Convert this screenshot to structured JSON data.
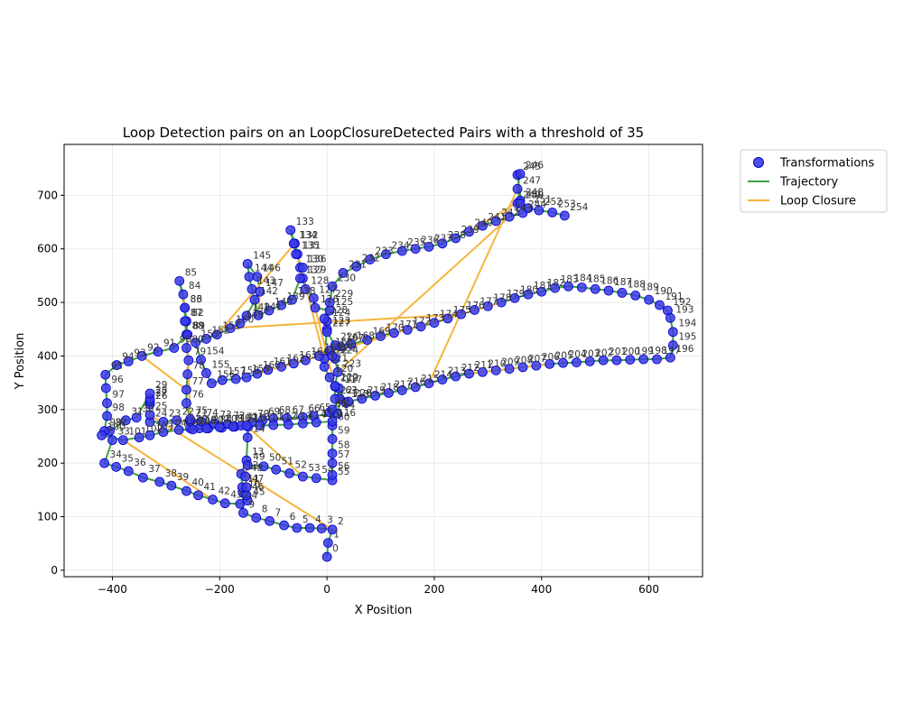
{
  "chart_data": {
    "type": "scatter",
    "title": "Loop Detection pairs on an LoopClosureDetected Pairs with a threshold of 35",
    "xlabel": "X Position",
    "ylabel": "Y Position",
    "xlim": [
      -490,
      700
    ],
    "ylim": [
      -12,
      795
    ],
    "xticks": [
      -400,
      -200,
      0,
      200,
      400,
      600
    ],
    "yticks": [
      0,
      100,
      200,
      300,
      400,
      500,
      600,
      700
    ],
    "xtick_labels": [
      "−400",
      "−200",
      "0",
      "200",
      "400",
      "600"
    ],
    "ytick_labels": [
      "0",
      "100",
      "200",
      "300",
      "400",
      "500",
      "600",
      "700"
    ],
    "grid": true,
    "legend_position": "outside-top-right",
    "colors": {
      "points_fill": "#3a3ae6",
      "points_edge": "#0000cc",
      "trajectory": "#3f9f3f",
      "loop": "#f5b53c",
      "label": "#333333"
    },
    "legend": [
      {
        "label": "Transformations",
        "kind": "marker"
      },
      {
        "label": "Trajectory",
        "kind": "trajectory"
      },
      {
        "label": "Loop Closure",
        "kind": "loop"
      }
    ],
    "points": [
      [
        0,
        25
      ],
      [
        2,
        51
      ],
      [
        10,
        76
      ],
      [
        -10,
        78
      ],
      [
        -32,
        79
      ],
      [
        -56,
        79
      ],
      [
        -80,
        84
      ],
      [
        -107,
        92
      ],
      [
        -132,
        98
      ],
      [
        -156,
        107
      ],
      [
        -157,
        145
      ],
      [
        -158,
        155
      ],
      [
        -160,
        180
      ],
      [
        -150,
        205
      ],
      [
        -148,
        248
      ],
      [
        -147,
        268
      ],
      [
        -172,
        268
      ],
      [
        -196,
        266
      ],
      [
        -221,
        265
      ],
      [
        -238,
        265
      ],
      [
        -255,
        265
      ],
      [
        -255,
        278
      ],
      [
        -280,
        280
      ],
      [
        -305,
        277
      ],
      [
        -330,
        277
      ],
      [
        -330,
        290
      ],
      [
        -330,
        310
      ],
      [
        -330,
        315
      ],
      [
        -330,
        320
      ],
      [
        -330,
        330
      ],
      [
        -355,
        285
      ],
      [
        -375,
        280
      ],
      [
        -405,
        260
      ],
      [
        -400,
        243
      ],
      [
        -415,
        200
      ],
      [
        -393,
        193
      ],
      [
        -370,
        185
      ],
      [
        -343,
        173
      ],
      [
        -312,
        165
      ],
      [
        -290,
        158
      ],
      [
        -262,
        148
      ],
      [
        -240,
        140
      ],
      [
        -213,
        132
      ],
      [
        -190,
        125
      ],
      [
        -162,
        124
      ],
      [
        -148,
        130
      ],
      [
        -150,
        140
      ],
      [
        -150,
        155
      ],
      [
        -152,
        175
      ],
      [
        -148,
        196
      ],
      [
        -118,
        194
      ],
      [
        -95,
        188
      ],
      [
        -70,
        181
      ],
      [
        -45,
        175
      ],
      [
        -20,
        172
      ],
      [
        10,
        168
      ],
      [
        10,
        178
      ],
      [
        10,
        200
      ],
      [
        10,
        218
      ],
      [
        10,
        245
      ],
      [
        10,
        270
      ],
      [
        5,
        295
      ],
      [
        10,
        300
      ],
      [
        24,
        320
      ],
      [
        20,
        292
      ],
      [
        -25,
        288
      ],
      [
        -45,
        286
      ],
      [
        -75,
        284
      ],
      [
        -100,
        283
      ],
      [
        -120,
        280
      ],
      [
        -140,
        276
      ],
      [
        -160,
        270
      ],
      [
        -185,
        273
      ],
      [
        -210,
        274
      ],
      [
        -235,
        278
      ],
      [
        -255,
        282
      ],
      [
        -262,
        312
      ],
      [
        -262,
        337
      ],
      [
        -260,
        366
      ],
      [
        -258,
        392
      ],
      [
        -262,
        415
      ],
      [
        -260,
        440
      ],
      [
        -262,
        465
      ],
      [
        -265,
        490
      ],
      [
        -268,
        515
      ],
      [
        -275,
        540
      ],
      [
        -265,
        490
      ],
      [
        -265,
        465
      ],
      [
        -262,
        440
      ],
      [
        -260,
        440
      ],
      [
        -285,
        415
      ],
      [
        -315,
        408
      ],
      [
        -345,
        400
      ],
      [
        -370,
        390
      ],
      [
        -392,
        383
      ],
      [
        -413,
        365
      ],
      [
        -412,
        340
      ],
      [
        -410,
        312
      ],
      [
        -410,
        288
      ],
      [
        -415,
        260
      ],
      [
        -420,
        252
      ],
      [
        -380,
        243
      ],
      [
        -350,
        248
      ],
      [
        -330,
        252
      ],
      [
        -305,
        258
      ],
      [
        -276,
        262
      ],
      [
        -250,
        263
      ],
      [
        -225,
        265
      ],
      [
        -200,
        267
      ],
      [
        -175,
        268
      ],
      [
        -150,
        270
      ],
      [
        -125,
        270
      ],
      [
        -100,
        271
      ],
      [
        -72,
        272
      ],
      [
        -45,
        274
      ],
      [
        -20,
        276
      ],
      [
        10,
        278
      ],
      [
        22,
        340
      ],
      [
        35,
        313
      ],
      [
        15,
        343
      ],
      [
        5,
        360
      ],
      [
        -5,
        380
      ],
      [
        -5,
        395
      ],
      [
        0,
        450
      ],
      [
        0,
        465
      ],
      [
        5,
        485
      ],
      [
        -22,
        490
      ],
      [
        -25,
        508
      ],
      [
        -40,
        525
      ],
      [
        -45,
        545
      ],
      [
        -50,
        565
      ],
      [
        -55,
        590
      ],
      [
        -60,
        610
      ],
      [
        -68,
        635
      ],
      [
        -62,
        610
      ],
      [
        -58,
        590
      ],
      [
        -45,
        565
      ],
      [
        -50,
        545
      ],
      [
        -65,
        505
      ],
      [
        -85,
        495
      ],
      [
        -108,
        485
      ],
      [
        -128,
        476
      ],
      [
        -135,
        505
      ],
      [
        -140,
        525
      ],
      [
        -145,
        548
      ],
      [
        -148,
        572
      ],
      [
        -130,
        548
      ],
      [
        -125,
        520
      ],
      [
        -150,
        475
      ],
      [
        -162,
        461
      ],
      [
        -180,
        452
      ],
      [
        -205,
        440
      ],
      [
        -225,
        432
      ],
      [
        -245,
        425
      ],
      [
        -235,
        393
      ],
      [
        -225,
        368
      ],
      [
        -215,
        349
      ],
      [
        -195,
        355
      ],
      [
        -170,
        357
      ],
      [
        -150,
        360
      ],
      [
        -130,
        367
      ],
      [
        -110,
        374
      ],
      [
        -85,
        380
      ],
      [
        -62,
        386
      ],
      [
        -40,
        392
      ],
      [
        -15,
        400
      ],
      [
        5,
        410
      ],
      [
        25,
        418
      ],
      [
        45,
        422
      ],
      [
        75,
        430
      ],
      [
        100,
        437
      ],
      [
        125,
        443
      ],
      [
        150,
        449
      ],
      [
        175,
        455
      ],
      [
        200,
        462
      ],
      [
        225,
        470
      ],
      [
        250,
        478
      ],
      [
        275,
        486
      ],
      [
        300,
        493
      ],
      [
        325,
        500
      ],
      [
        350,
        508
      ],
      [
        375,
        515
      ],
      [
        400,
        520
      ],
      [
        425,
        527
      ],
      [
        450,
        530
      ],
      [
        475,
        528
      ],
      [
        500,
        525
      ],
      [
        525,
        522
      ],
      [
        550,
        518
      ],
      [
        575,
        513
      ],
      [
        600,
        505
      ],
      [
        620,
        495
      ],
      [
        635,
        485
      ],
      [
        640,
        471
      ],
      [
        645,
        445
      ],
      [
        645,
        420
      ],
      [
        640,
        397
      ],
      [
        615,
        394
      ],
      [
        590,
        394
      ],
      [
        565,
        393
      ],
      [
        540,
        392
      ],
      [
        515,
        392
      ],
      [
        490,
        390
      ],
      [
        465,
        388
      ],
      [
        440,
        387
      ],
      [
        415,
        385
      ],
      [
        390,
        382
      ],
      [
        365,
        379
      ],
      [
        340,
        376
      ],
      [
        315,
        373
      ],
      [
        290,
        370
      ],
      [
        265,
        367
      ],
      [
        240,
        362
      ],
      [
        215,
        356
      ],
      [
        190,
        349
      ],
      [
        165,
        342
      ],
      [
        140,
        336
      ],
      [
        115,
        331
      ],
      [
        90,
        326
      ],
      [
        65,
        320
      ],
      [
        40,
        315
      ],
      [
        15,
        320
      ],
      [
        15,
        344
      ],
      [
        20,
        370
      ],
      [
        15,
        395
      ],
      [
        10,
        400
      ],
      [
        15,
        420
      ],
      [
        0,
        445
      ],
      [
        -5,
        470
      ],
      [
        5,
        500
      ],
      [
        10,
        530
      ],
      [
        30,
        555
      ],
      [
        55,
        567
      ],
      [
        80,
        580
      ],
      [
        110,
        590
      ],
      [
        140,
        596
      ],
      [
        165,
        600
      ],
      [
        190,
        604
      ],
      [
        215,
        610
      ],
      [
        240,
        620
      ],
      [
        265,
        632
      ],
      [
        290,
        643
      ],
      [
        315,
        652
      ],
      [
        340,
        660
      ],
      [
        365,
        667
      ],
      [
        355,
        738
      ],
      [
        360,
        740
      ],
      [
        355,
        712
      ],
      [
        360,
        690
      ],
      [
        355,
        685
      ],
      [
        360,
        685
      ],
      [
        375,
        676
      ],
      [
        395,
        672
      ],
      [
        420,
        668
      ],
      [
        443,
        662
      ]
    ],
    "loop_closures": [
      [
        2,
        25
      ],
      [
        13,
        47
      ],
      [
        17,
        22
      ],
      [
        21,
        81
      ],
      [
        24,
        29
      ],
      [
        42,
        101
      ],
      [
        53,
        110
      ],
      [
        77,
        92
      ],
      [
        84,
        86
      ],
      [
        119,
        126
      ],
      [
        122,
        131
      ],
      [
        132,
        151
      ],
      [
        141,
        147
      ],
      [
        150,
        176
      ],
      [
        160,
        179
      ],
      [
        205,
        211
      ],
      [
        214,
        247
      ],
      [
        223,
        243
      ],
      [
        240,
        248
      ]
    ]
  }
}
